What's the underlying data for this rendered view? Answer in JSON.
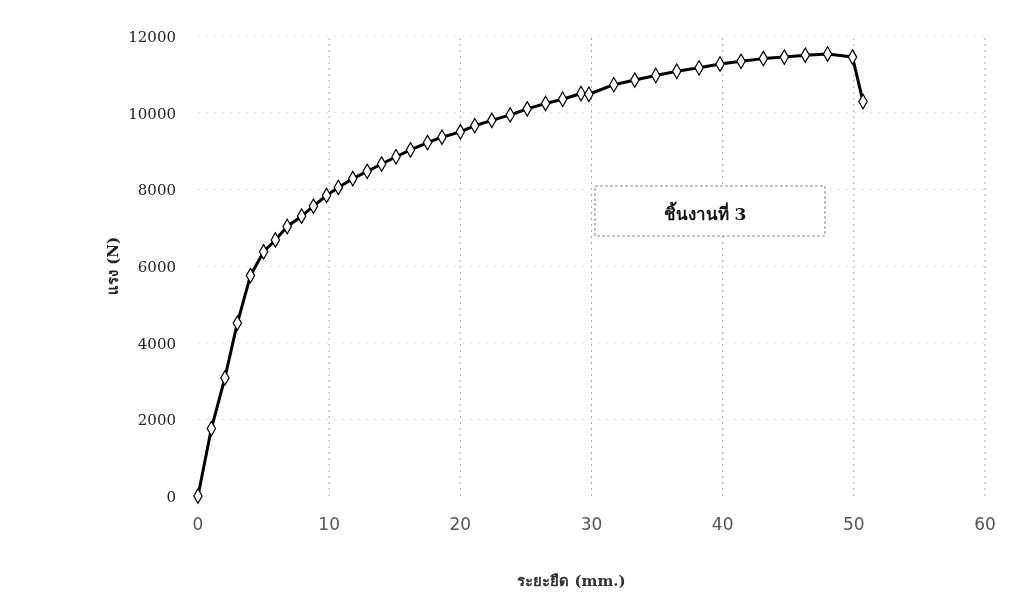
{
  "chart_data": {
    "type": "line",
    "xlabel": "ระยะยืด (mm.)",
    "ylabel": "แรง (N)",
    "annotations": [
      "ชิ้นงานที่ 3"
    ],
    "xlim": [
      0,
      60
    ],
    "xticks": [
      0,
      10,
      20,
      30,
      40,
      50,
      60
    ],
    "ylim": [
      0,
      12000
    ],
    "yticks": [
      0,
      2000,
      4000,
      6000,
      8000,
      10000,
      12000
    ],
    "grid": true,
    "marker": "diamond",
    "line_style": "solid",
    "series": [
      {
        "color": "#000000",
        "x": [
          0,
          1.02,
          2.05,
          3.0,
          4.0,
          5.0,
          5.9,
          6.8,
          7.9,
          8.8,
          9.8,
          10.7,
          11.8,
          12.9,
          14.0,
          15.1,
          16.2,
          17.5,
          18.6,
          20.0,
          21.1,
          22.4,
          23.8,
          25.1,
          26.5,
          27.8,
          29.2,
          29.8,
          31.7,
          33.3,
          34.9,
          36.5,
          38.2,
          39.8,
          41.4,
          43.1,
          44.7,
          46.3,
          48.0,
          49.9,
          50.7
        ],
        "values": [
          0,
          1760,
          3080,
          4510,
          5750,
          6370,
          6680,
          7030,
          7300,
          7560,
          7840,
          8050,
          8280,
          8470,
          8660,
          8850,
          9030,
          9220,
          9360,
          9500,
          9660,
          9800,
          9940,
          10100,
          10240,
          10350,
          10500,
          10480,
          10730,
          10850,
          10970,
          11080,
          11170,
          11270,
          11340,
          11410,
          11450,
          11500,
          11530,
          11450,
          10290
        ]
      }
    ]
  }
}
